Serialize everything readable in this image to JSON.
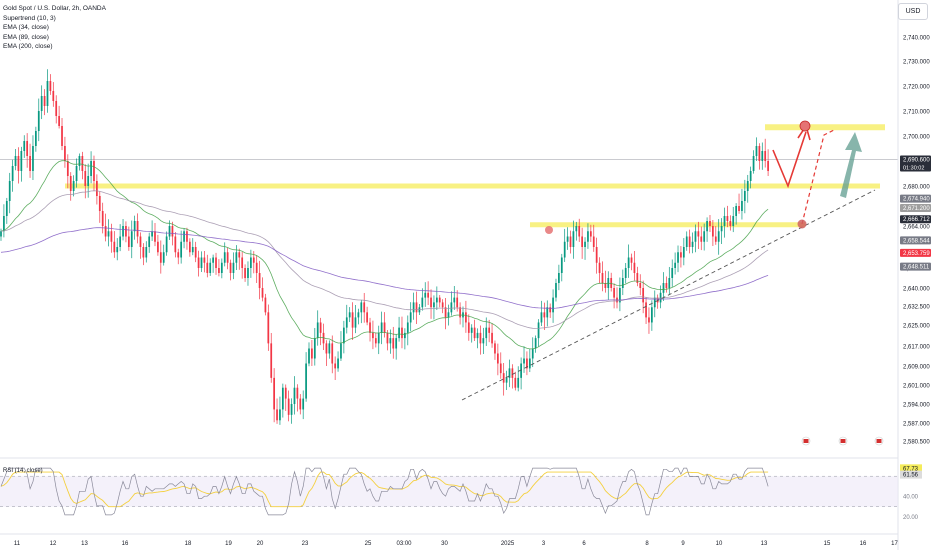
{
  "header": {
    "symbol_line": "Gold Spot / U.S. Dollar, 2h, OANDA",
    "indicators": [
      "Supertrend (10, 3)",
      "EMA (34, close)",
      "EMA (89, close)",
      "EMA (200, close)"
    ],
    "currency_button": "USD"
  },
  "rsi_legend": "RSI (14, close)",
  "colors": {
    "up": "#089981",
    "down": "#f23645",
    "zone": "#f5ec5a",
    "supertrend_up_fill": "#c8e6c9",
    "supertrend_down_fill": "#f2d7cf",
    "ema_fast": "#43a047",
    "ema_mid": "#9e8fa8",
    "ema_slow": "#7e57c2",
    "arrow_red": "#e53935",
    "arrow_teal": "#5f9c8f",
    "rsi_line": "#8a8a9a",
    "rsi_ma": "#f4d03f"
  },
  "chart_data": {
    "type": "candlestick",
    "price_axis": {
      "ylim": [
        2576,
        2748
      ],
      "ticks": [
        "2,740.000",
        "2,730.000",
        "2,720.000",
        "2,710.000",
        "2,700.000",
        "2,690.000",
        "2,680.000",
        "2,664.000",
        "2,648.000",
        "2,640.000",
        "2,632.500",
        "2,625.000",
        "2,617.000",
        "2,609.000",
        "2,601.000",
        "2,594.000",
        "2,587.000",
        "2,580.500"
      ],
      "tick_values": [
        2740,
        2730,
        2720,
        2710,
        2700,
        2690,
        2680,
        2664,
        2648,
        2640,
        2632.5,
        2625,
        2617,
        2609,
        2601,
        2594,
        2587,
        2580.5
      ]
    },
    "price_labels": [
      {
        "text": "2,690.600",
        "sub": "01:30:02",
        "value": 2690.6,
        "color": "#2a2e39"
      },
      {
        "text": "2,674.940",
        "value": 2674.94,
        "color": "#787b86"
      },
      {
        "text": "2,671.200",
        "value": 2671.2,
        "color": "#9e9e9e"
      },
      {
        "text": "2,666.712",
        "value": 2666.712,
        "color": "#2a2e39"
      },
      {
        "text": "2,658.544",
        "value": 2658.544,
        "color": "#787b86"
      },
      {
        "text": "2,653.759",
        "value": 2653.759,
        "color": "#f23645"
      },
      {
        "text": "2,648.511",
        "value": 2648.511,
        "color": "#787b86"
      }
    ],
    "time_axis": {
      "xlim": [
        0,
        95
      ],
      "ticks": [
        {
          "t": 1,
          "label": "11"
        },
        {
          "t": 5,
          "label": "12"
        },
        {
          "t": 8.5,
          "label": "13"
        },
        {
          "t": 13,
          "label": "16"
        },
        {
          "t": 20,
          "label": "18"
        },
        {
          "t": 24.5,
          "label": "19"
        },
        {
          "t": 28,
          "label": "20"
        },
        {
          "t": 33,
          "label": "23"
        },
        {
          "t": 40,
          "label": "25"
        },
        {
          "t": 44,
          "label": "03:00"
        },
        {
          "t": 48.5,
          "label": "30"
        },
        {
          "t": 55.5,
          "label": "2025"
        },
        {
          "t": 59.5,
          "label": "3"
        },
        {
          "t": 64,
          "label": "6"
        },
        {
          "t": 71,
          "label": "8"
        },
        {
          "t": 75,
          "label": "9"
        },
        {
          "t": 79,
          "label": "10"
        },
        {
          "t": 84,
          "label": "13"
        },
        {
          "t": 91,
          "label": "15"
        },
        {
          "t": 95,
          "label": "16"
        },
        {
          "t": 98.5,
          "label": "17"
        }
      ]
    },
    "candles_t0": 0.5,
    "candles_dt": 0.62,
    "closes": [
      2662,
      2668,
      2674,
      2682,
      2688,
      2692,
      2686,
      2694,
      2698,
      2692,
      2686,
      2696,
      2702,
      2710,
      2716,
      2712,
      2722,
      2718,
      2714,
      2708,
      2704,
      2696,
      2690,
      2684,
      2678,
      2682,
      2688,
      2692,
      2686,
      2680,
      2684,
      2690,
      2682,
      2676,
      2670,
      2664,
      2660,
      2662,
      2658,
      2654,
      2656,
      2660,
      2664,
      2660,
      2656,
      2662,
      2666,
      2660,
      2656,
      2652,
      2656,
      2660,
      2662,
      2658,
      2654,
      2650,
      2654,
      2660,
      2664,
      2660,
      2654,
      2652,
      2658,
      2662,
      2658,
      2654,
      2656,
      2652,
      2648,
      2652,
      2650,
      2646,
      2650,
      2652,
      2648,
      2646,
      2650,
      2654,
      2650,
      2646,
      2650,
      2654,
      2652,
      2648,
      2644,
      2648,
      2652,
      2650,
      2646,
      2640,
      2636,
      2630,
      2618,
      2604,
      2592,
      2588,
      2592,
      2600,
      2596,
      2590,
      2594,
      2600,
      2596,
      2592,
      2596,
      2610,
      2616,
      2612,
      2620,
      2626,
      2622,
      2618,
      2614,
      2618,
      2610,
      2608,
      2612,
      2618,
      2624,
      2628,
      2630,
      2624,
      2628,
      2630,
      2634,
      2630,
      2626,
      2622,
      2620,
      2618,
      2622,
      2626,
      2622,
      2618,
      2620,
      2616,
      2620,
      2624,
      2620,
      2622,
      2626,
      2630,
      2634,
      2630,
      2632,
      2636,
      2638,
      2636,
      2632,
      2634,
      2636,
      2634,
      2632,
      2628,
      2630,
      2634,
      2636,
      2632,
      2628,
      2630,
      2626,
      2622,
      2624,
      2620,
      2622,
      2618,
      2620,
      2624,
      2622,
      2618,
      2614,
      2610,
      2606,
      2602,
      2604,
      2608,
      2604,
      2600,
      2604,
      2610,
      2612,
      2608,
      2612,
      2616,
      2620,
      2626,
      2630,
      2628,
      2632,
      2630,
      2636,
      2642,
      2646,
      2652,
      2658,
      2660,
      2656,
      2662,
      2664,
      2660,
      2656,
      2658,
      2662,
      2660,
      2656,
      2650,
      2646,
      2642,
      2640,
      2644,
      2640,
      2636,
      2634,
      2640,
      2644,
      2648,
      2652,
      2650,
      2646,
      2642,
      2640,
      2634,
      2628,
      2626,
      2632,
      2636,
      2634,
      2638,
      2642,
      2640,
      2644,
      2648,
      2650,
      2654,
      2652,
      2656,
      2660,
      2656,
      2658,
      2662,
      2660,
      2658,
      2662,
      2666,
      2664,
      2660,
      2658,
      2662,
      2664,
      2668,
      2666,
      2664,
      2668,
      2672,
      2670,
      2674,
      2678,
      2682,
      2686,
      2692,
      2696,
      2690,
      2694,
      2690,
      2686
    ],
    "rsi": {
      "ylim": [
        15,
        72
      ],
      "ticks": [
        {
          "value": 67.73,
          "label": "67.73",
          "color": "#131722",
          "bg": "#f5ec5a"
        },
        {
          "value": 61.56,
          "label": "61.56",
          "color": "#131722",
          "bg": "#dcdcdc"
        },
        {
          "value": 40,
          "label": "40.00",
          "color": "#787b86",
          "bg": ""
        },
        {
          "value": 20,
          "label": "20.00",
          "color": "#787b86",
          "bg": ""
        }
      ]
    }
  }
}
